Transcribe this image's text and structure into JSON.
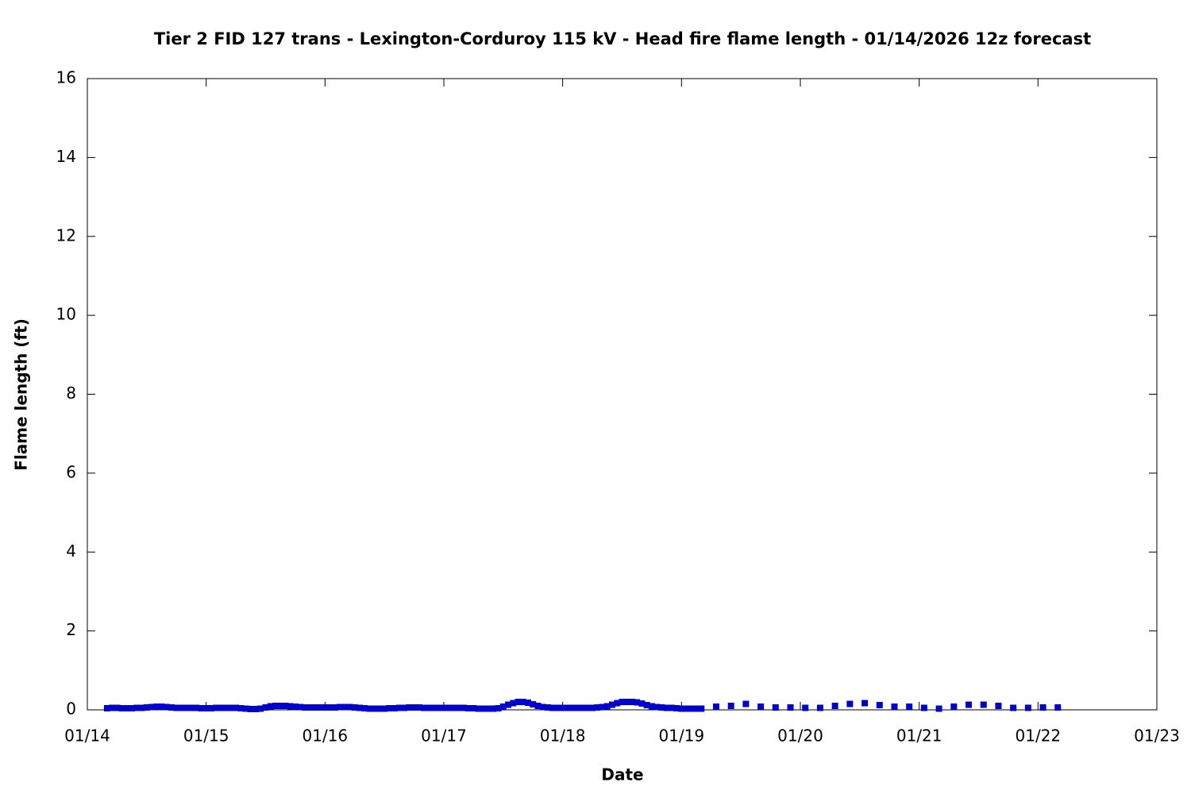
{
  "chart_data": {
    "type": "scatter",
    "title": "Tier 2 FID 127 trans - Lexington-Corduroy 115 kV - Head fire flame length - 01/14/2026 12z forecast",
    "xlabel": "Date",
    "ylabel": "Flame length (ft)",
    "color": "#0000cc",
    "x": [
      4,
      5,
      6,
      7,
      8,
      9,
      10,
      11,
      12,
      13,
      14,
      15,
      16,
      17,
      18,
      19,
      20,
      21,
      22,
      23,
      24,
      25,
      26,
      27,
      28,
      29,
      30,
      31,
      32,
      33,
      34,
      35,
      36,
      37,
      38,
      39,
      40,
      41,
      42,
      43,
      44,
      45,
      46,
      47,
      48,
      49,
      50,
      51,
      52,
      53,
      54,
      55,
      56,
      57,
      58,
      59,
      60,
      61,
      62,
      63,
      64,
      65,
      66,
      67,
      68,
      69,
      70,
      71,
      72,
      73,
      74,
      75,
      76,
      77,
      78,
      79,
      80,
      81,
      82,
      83,
      84,
      85,
      86,
      87,
      88,
      89,
      90,
      91,
      92,
      93,
      94,
      95,
      96,
      97,
      98,
      99,
      100,
      101,
      102,
      103,
      104,
      105,
      106,
      107,
      108,
      109,
      110,
      111,
      112,
      113,
      114,
      115,
      116,
      117,
      118,
      119,
      120,
      121,
      122,
      123,
      124,
      127,
      130,
      133,
      136,
      139,
      142,
      145,
      148,
      151,
      154,
      157,
      160,
      163,
      166,
      169,
      172,
      175,
      178,
      181,
      184,
      187,
      190,
      193,
      196
    ],
    "values": [
      0.04,
      0.05,
      0.05,
      0.04,
      0.04,
      0.04,
      0.05,
      0.05,
      0.06,
      0.07,
      0.08,
      0.08,
      0.07,
      0.06,
      0.05,
      0.05,
      0.05,
      0.05,
      0.05,
      0.04,
      0.04,
      0.04,
      0.05,
      0.05,
      0.05,
      0.05,
      0.05,
      0.04,
      0.03,
      0.02,
      0.02,
      0.03,
      0.06,
      0.09,
      0.1,
      0.1,
      0.1,
      0.09,
      0.08,
      0.07,
      0.06,
      0.06,
      0.06,
      0.06,
      0.06,
      0.06,
      0.06,
      0.07,
      0.07,
      0.07,
      0.06,
      0.05,
      0.04,
      0.03,
      0.03,
      0.03,
      0.03,
      0.04,
      0.04,
      0.05,
      0.05,
      0.06,
      0.06,
      0.06,
      0.05,
      0.05,
      0.05,
      0.05,
      0.05,
      0.05,
      0.05,
      0.05,
      0.05,
      0.04,
      0.04,
      0.03,
      0.03,
      0.03,
      0.03,
      0.04,
      0.08,
      0.13,
      0.17,
      0.2,
      0.2,
      0.18,
      0.14,
      0.1,
      0.07,
      0.06,
      0.05,
      0.05,
      0.05,
      0.05,
      0.05,
      0.05,
      0.05,
      0.05,
      0.05,
      0.06,
      0.07,
      0.09,
      0.13,
      0.17,
      0.2,
      0.2,
      0.2,
      0.19,
      0.16,
      0.12,
      0.09,
      0.07,
      0.06,
      0.05,
      0.05,
      0.04,
      0.03,
      0.03,
      0.03,
      0.03,
      0.03,
      0.08,
      0.1,
      0.15,
      0.08,
      0.06,
      0.06,
      0.05,
      0.05,
      0.1,
      0.15,
      0.17,
      0.12,
      0.08,
      0.08,
      0.05,
      0.03,
      0.08,
      0.13,
      0.13,
      0.1,
      0.05,
      0.05,
      0.06,
      0.06
    ],
    "xlim": [
      0,
      216
    ],
    "xticks": [
      {
        "value": 0,
        "label": "01/14"
      },
      {
        "value": 24,
        "label": "01/15"
      },
      {
        "value": 48,
        "label": "01/16"
      },
      {
        "value": 72,
        "label": "01/17"
      },
      {
        "value": 96,
        "label": "01/18"
      },
      {
        "value": 120,
        "label": "01/19"
      },
      {
        "value": 144,
        "label": "01/20"
      },
      {
        "value": 168,
        "label": "01/21"
      },
      {
        "value": 192,
        "label": "01/22"
      },
      {
        "value": 216,
        "label": "01/23"
      }
    ],
    "ylim": [
      0,
      16
    ],
    "yticks": [
      0,
      2,
      4,
      6,
      8,
      10,
      12,
      14,
      16
    ],
    "grid": false
  }
}
